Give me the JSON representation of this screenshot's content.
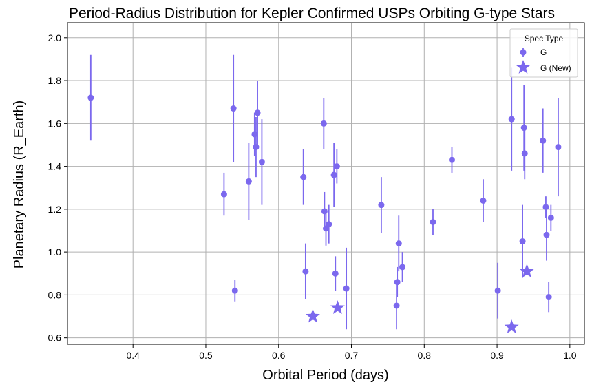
{
  "chart_data": {
    "type": "scatter",
    "title": "Period-Radius Distribution for Kepler Confirmed USPs Orbiting G-type Stars",
    "xlabel": "Orbital Period (days)",
    "ylabel": "Planetary Radius (R_Earth)",
    "xlim": [
      0.31,
      1.02
    ],
    "ylim": [
      0.57,
      2.07
    ],
    "xticks": [
      0.4,
      0.5,
      0.6,
      0.7,
      0.8,
      0.9,
      1.0
    ],
    "xtick_labels": [
      "0.4",
      "0.5",
      "0.6",
      "0.7",
      "0.8",
      "0.9",
      "1.0"
    ],
    "yticks": [
      0.6,
      0.8,
      1.0,
      1.2,
      1.4,
      1.6,
      1.8,
      2.0
    ],
    "ytick_labels": [
      "0.6",
      "0.8",
      "1.0",
      "1.2",
      "1.4",
      "1.6",
      "1.8",
      "2.0"
    ],
    "grid": true,
    "legend": {
      "title": "Spec Type",
      "placement": "top-right",
      "entries": [
        "G",
        "G (New)"
      ]
    },
    "color": "#7b68ee",
    "series": [
      {
        "name": "G",
        "marker": "circle",
        "points": [
          {
            "x": 0.342,
            "y": 1.72,
            "err": 0.2
          },
          {
            "x": 0.525,
            "y": 1.27,
            "err": 0.1
          },
          {
            "x": 0.538,
            "y": 1.67,
            "err": 0.25
          },
          {
            "x": 0.54,
            "y": 0.82,
            "err": 0.05
          },
          {
            "x": 0.559,
            "y": 1.33,
            "err": 0.18
          },
          {
            "x": 0.567,
            "y": 1.55,
            "err": 0.1
          },
          {
            "x": 0.569,
            "y": 1.49,
            "err": 0.14
          },
          {
            "x": 0.571,
            "y": 1.65,
            "err": 0.15
          },
          {
            "x": 0.577,
            "y": 1.42,
            "err": 0.2
          },
          {
            "x": 0.634,
            "y": 1.35,
            "err": 0.13
          },
          {
            "x": 0.637,
            "y": 0.91,
            "err": 0.13
          },
          {
            "x": 0.662,
            "y": 1.6,
            "err": 0.12
          },
          {
            "x": 0.663,
            "y": 1.19,
            "err": 0.09
          },
          {
            "x": 0.665,
            "y": 1.11,
            "err": 0.08
          },
          {
            "x": 0.669,
            "y": 1.13,
            "err": 0.09
          },
          {
            "x": 0.676,
            "y": 1.36,
            "err": 0.15
          },
          {
            "x": 0.678,
            "y": 0.9,
            "err": 0.08
          },
          {
            "x": 0.68,
            "y": 1.4,
            "err": 0.08
          },
          {
            "x": 0.693,
            "y": 0.83,
            "err": 0.19
          },
          {
            "x": 0.741,
            "y": 1.22,
            "err": 0.13
          },
          {
            "x": 0.762,
            "y": 0.75,
            "err": 0.11
          },
          {
            "x": 0.763,
            "y": 0.86,
            "err": 0.07
          },
          {
            "x": 0.765,
            "y": 1.04,
            "err": 0.13
          },
          {
            "x": 0.77,
            "y": 0.93,
            "err": 0.07
          },
          {
            "x": 0.812,
            "y": 1.14,
            "err": 0.06
          },
          {
            "x": 0.838,
            "y": 1.43,
            "err": 0.06
          },
          {
            "x": 0.881,
            "y": 1.24,
            "err": 0.1
          },
          {
            "x": 0.901,
            "y": 0.82,
            "err": 0.13
          },
          {
            "x": 0.92,
            "y": 1.62,
            "err": 0.24
          },
          {
            "x": 0.935,
            "y": 1.05,
            "err": 0.17
          },
          {
            "x": 0.937,
            "y": 1.58,
            "err": 0.2
          },
          {
            "x": 0.938,
            "y": 1.46,
            "err": 0.12
          },
          {
            "x": 0.963,
            "y": 1.52,
            "err": 0.15
          },
          {
            "x": 0.967,
            "y": 1.21,
            "err": 0.05
          },
          {
            "x": 0.968,
            "y": 1.08,
            "err": 0.12
          },
          {
            "x": 0.971,
            "y": 0.79,
            "err": 0.07
          },
          {
            "x": 0.974,
            "y": 1.16,
            "err": 0.06
          },
          {
            "x": 0.984,
            "y": 1.49,
            "err": 0.23
          }
        ]
      },
      {
        "name": "G (New)",
        "marker": "star",
        "points": [
          {
            "x": 0.647,
            "y": 0.7
          },
          {
            "x": 0.681,
            "y": 0.74
          },
          {
            "x": 0.92,
            "y": 0.65
          },
          {
            "x": 0.941,
            "y": 0.91
          }
        ]
      }
    ]
  }
}
